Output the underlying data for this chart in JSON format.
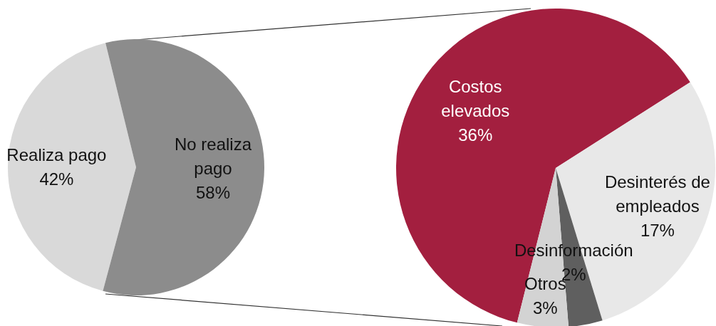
{
  "chart_data": [
    {
      "type": "pie",
      "categories": [
        "Realiza pago",
        "No realiza pago"
      ],
      "values": [
        42,
        58
      ],
      "colors": [
        "#d9d9d9",
        "#8c8c8c"
      ],
      "value_labels": [
        "42%",
        "58%"
      ]
    },
    {
      "type": "pie",
      "categories": [
        "Costos elevados",
        "Desinterés de empleados",
        "Desinformación",
        "Otros"
      ],
      "values": [
        36,
        17,
        2,
        3
      ],
      "colors": [
        "#a31f3f",
        "#e8e8e8",
        "#5f5f5f",
        "#d3d3d3"
      ],
      "value_labels": [
        "36%",
        "17%",
        "2%",
        "3%"
      ]
    }
  ]
}
